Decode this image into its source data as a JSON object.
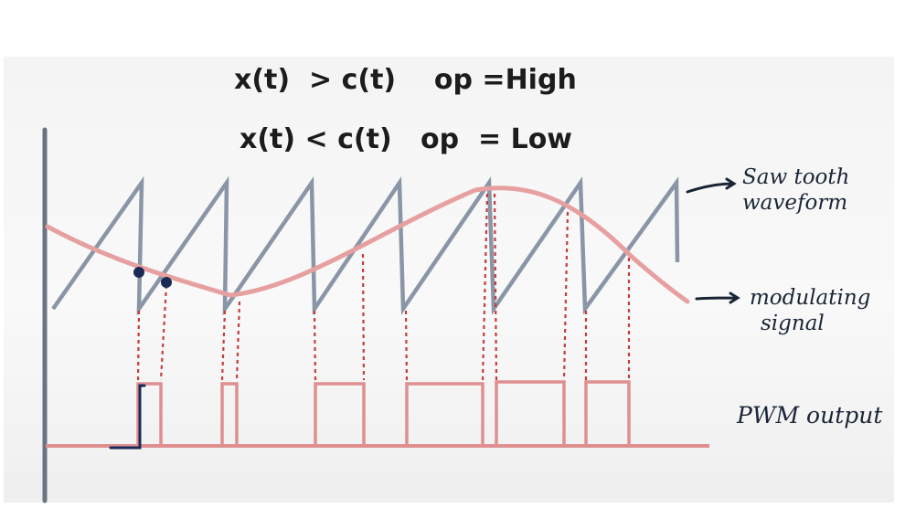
{
  "header": {
    "condition_high": "x(t)  > c(t)    op =High",
    "condition_low": "x(t) < c(t)   op  = Low"
  },
  "labels": {
    "sawtooth_line1": "Saw tooth",
    "sawtooth_line2": "waveform",
    "modulating_line1": "modulating",
    "modulating_line2": "signal",
    "pwm": "PWM output"
  },
  "colors": {
    "sawtooth": "#8a96a6",
    "modulating": "#e7a0a0",
    "pwm": "#df8f8f",
    "guide_dashes": "#c43c3c",
    "axis": "#6a7480",
    "ink": "#1b2a55"
  }
}
